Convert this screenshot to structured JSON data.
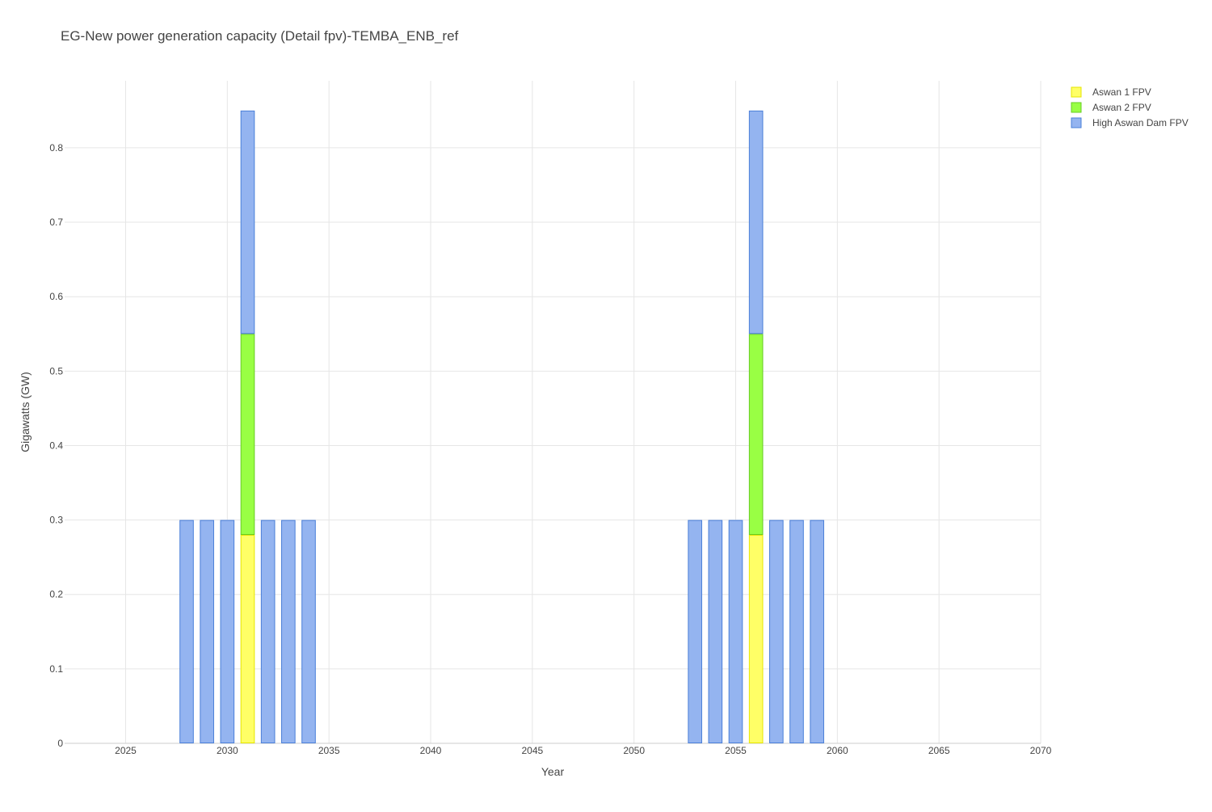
{
  "chart_data": {
    "type": "bar",
    "barmode": "stack",
    "title": "EG-New power generation capacity (Detail fpv)-TEMBA_ENB_ref",
    "xlabel": "Year",
    "ylabel": "Gigawatts (GW)",
    "xlim": [
      2022,
      2070
    ],
    "ylim": [
      0,
      0.89
    ],
    "xticks": [
      2025,
      2030,
      2035,
      2040,
      2045,
      2050,
      2055,
      2060,
      2065,
      2070
    ],
    "yticks": [
      0,
      0.1,
      0.2,
      0.3,
      0.4,
      0.5,
      0.6,
      0.7,
      0.8
    ],
    "ytick_labels": [
      "0",
      "0.1",
      "0.2",
      "0.3",
      "0.4",
      "0.5",
      "0.6",
      "0.7",
      "0.8"
    ],
    "grid": true,
    "legend_position": "top-right",
    "series": [
      {
        "name": "Aswan 1 FPV",
        "color": "#ffff66",
        "border_color": "#e6e600",
        "points": [
          {
            "x": 2031,
            "y": 0.28
          },
          {
            "x": 2056,
            "y": 0.28
          }
        ]
      },
      {
        "name": "Aswan 2 FPV",
        "color": "#99ff44",
        "border_color": "#66cc22",
        "points": [
          {
            "x": 2031,
            "y": 0.27
          },
          {
            "x": 2056,
            "y": 0.27
          }
        ]
      },
      {
        "name": "High Aswan Dam FPV",
        "color": "#94b4f0",
        "border_color": "#4a7fd8",
        "points": [
          {
            "x": 2028,
            "y": 0.3
          },
          {
            "x": 2029,
            "y": 0.3
          },
          {
            "x": 2030,
            "y": 0.3
          },
          {
            "x": 2031,
            "y": 0.3
          },
          {
            "x": 2032,
            "y": 0.3
          },
          {
            "x": 2033,
            "y": 0.3
          },
          {
            "x": 2034,
            "y": 0.3
          },
          {
            "x": 2053,
            "y": 0.3
          },
          {
            "x": 2054,
            "y": 0.3
          },
          {
            "x": 2055,
            "y": 0.3
          },
          {
            "x": 2056,
            "y": 0.3
          },
          {
            "x": 2057,
            "y": 0.3
          },
          {
            "x": 2058,
            "y": 0.3
          },
          {
            "x": 2059,
            "y": 0.3
          }
        ]
      }
    ]
  }
}
